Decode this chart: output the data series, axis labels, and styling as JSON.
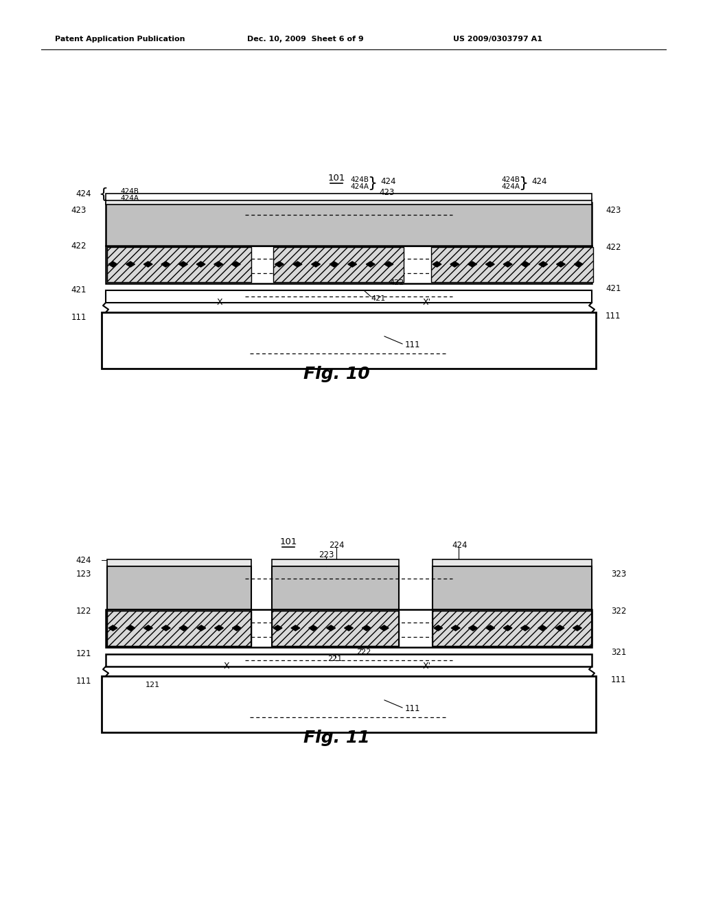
{
  "fig_width": 10.24,
  "fig_height": 13.2,
  "bg_color": "#ffffff",
  "header_left": "Patent Application Publication",
  "header_mid": "Dec. 10, 2009  Sheet 6 of 9",
  "header_right": "US 2009/0303797 A1"
}
